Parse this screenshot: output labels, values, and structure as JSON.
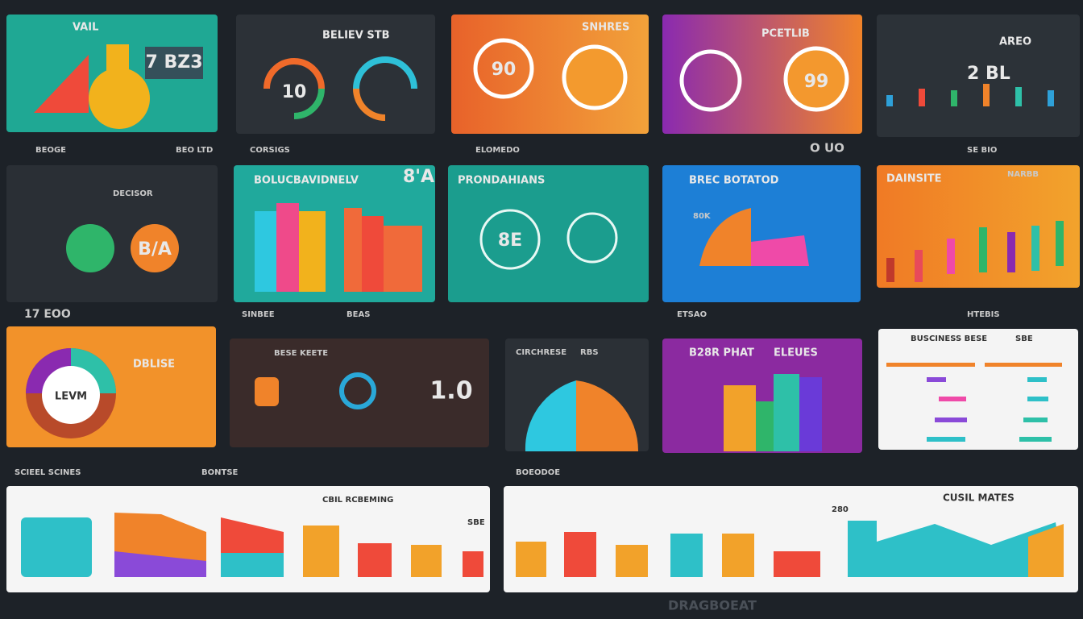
{
  "panels": [
    {
      "title": "VAIL",
      "label": "7 BZ3"
    },
    {
      "title": "BELIEV STB",
      "label": "10"
    },
    {
      "title": "SNHRES",
      "label": "90"
    },
    {
      "title": "PCETLIB",
      "label": "99"
    },
    {
      "title": "AREO",
      "label": "2 BL"
    },
    {
      "title": "DECISOR",
      "label": "B/A"
    },
    {
      "title": "BOLUCBAVIDNELV",
      "label": "8'A"
    },
    {
      "title": "PRONDAHIANS",
      "label": "8E"
    },
    {
      "title": "BREC BOTATOD",
      "label": "80K"
    },
    {
      "title": "DAINSITE",
      "label": "NARBB"
    },
    {
      "title": "DBLISE",
      "label": "LEVM"
    },
    {
      "title": "BESE KEETE",
      "label": "1.0"
    },
    {
      "title": "CIRCHRESE",
      "label": "RBS"
    },
    {
      "title": "B28R PHAT",
      "label": "ELEUES"
    },
    {
      "title": "BUSCINESS BESE",
      "label": "SBE"
    },
    {
      "title": "CBIL RCBEMING",
      "label": "SBE"
    },
    {
      "title": "CUSIL MATES",
      "label": "280"
    }
  ],
  "captions": [
    "BEOGE",
    "BEO LTD",
    "CORSIGS",
    "ELOMEDO",
    "O UO",
    "SE BIO",
    "17 EOO",
    "SINBEE",
    "BEAS",
    "ETSAO",
    "HTEBIS",
    "SCIEEL SCINES",
    "BONTSE",
    "BOEODOE"
  ],
  "footer": "DRAGBOEAT"
}
